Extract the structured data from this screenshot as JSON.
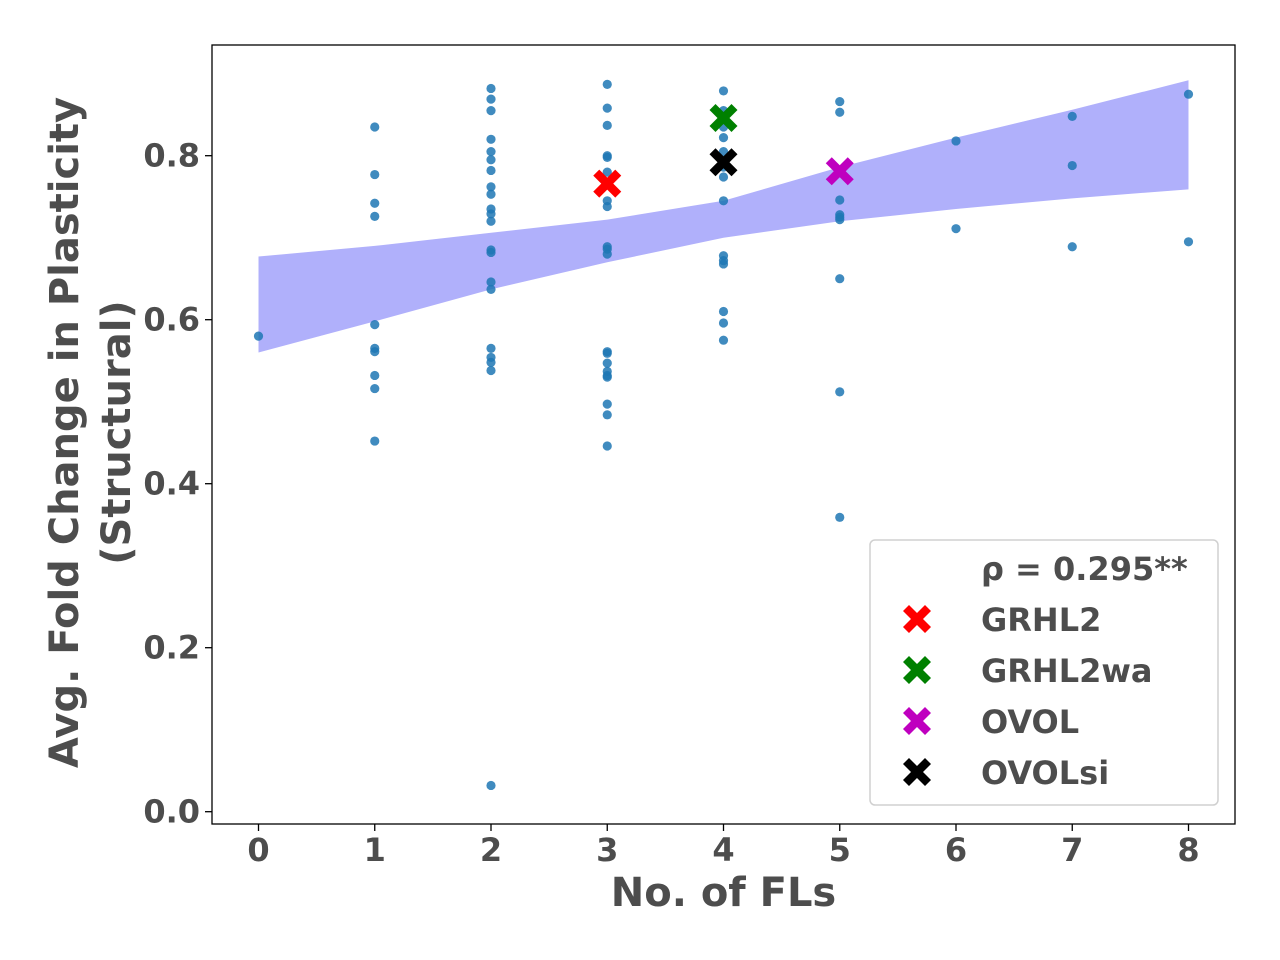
{
  "chart_data": {
    "type": "scatter",
    "xlabel": "No. of FLs",
    "ylabel_line1": "Avg. Fold Change in Plasticity",
    "ylabel_line2": "(Structural)",
    "xlim": [
      -0.4,
      8.4
    ],
    "ylim": [
      -0.015,
      0.935
    ],
    "x_ticks": [
      "0",
      "1",
      "2",
      "3",
      "4",
      "5",
      "6",
      "7",
      "8"
    ],
    "y_ticks": [
      "0.0",
      "0.2",
      "0.4",
      "0.6",
      "0.8"
    ],
    "grid": false,
    "legend_position": "lower-right",
    "colors": {
      "points": "#1f77b4",
      "band": "#b0b0fb",
      "GRHL2": "#ff0000",
      "GRHL2wa": "#008000",
      "OVOL": "#bf00bf",
      "OVOLsi": "#000000",
      "text": "#4d4d4d"
    },
    "points": [
      {
        "x": 0,
        "y": 0.58
      },
      {
        "x": 1,
        "y": 0.835
      },
      {
        "x": 1,
        "y": 0.777
      },
      {
        "x": 1,
        "y": 0.742
      },
      {
        "x": 1,
        "y": 0.726
      },
      {
        "x": 1,
        "y": 0.594
      },
      {
        "x": 1,
        "y": 0.565
      },
      {
        "x": 1,
        "y": 0.561
      },
      {
        "x": 1,
        "y": 0.532
      },
      {
        "x": 1,
        "y": 0.516
      },
      {
        "x": 1,
        "y": 0.452
      },
      {
        "x": 2,
        "y": 0.882
      },
      {
        "x": 2,
        "y": 0.869
      },
      {
        "x": 2,
        "y": 0.855
      },
      {
        "x": 2,
        "y": 0.82
      },
      {
        "x": 2,
        "y": 0.805
      },
      {
        "x": 2,
        "y": 0.795
      },
      {
        "x": 2,
        "y": 0.782
      },
      {
        "x": 2,
        "y": 0.762
      },
      {
        "x": 2,
        "y": 0.753
      },
      {
        "x": 2,
        "y": 0.735
      },
      {
        "x": 2,
        "y": 0.729
      },
      {
        "x": 2,
        "y": 0.72
      },
      {
        "x": 2,
        "y": 0.685
      },
      {
        "x": 2,
        "y": 0.682
      },
      {
        "x": 2,
        "y": 0.646
      },
      {
        "x": 2,
        "y": 0.637
      },
      {
        "x": 2,
        "y": 0.565
      },
      {
        "x": 2,
        "y": 0.554
      },
      {
        "x": 2,
        "y": 0.548
      },
      {
        "x": 2,
        "y": 0.538
      },
      {
        "x": 2,
        "y": 0.032
      },
      {
        "x": 3,
        "y": 0.887
      },
      {
        "x": 3,
        "y": 0.858
      },
      {
        "x": 3,
        "y": 0.837
      },
      {
        "x": 3,
        "y": 0.8
      },
      {
        "x": 3,
        "y": 0.798
      },
      {
        "x": 3,
        "y": 0.78
      },
      {
        "x": 3,
        "y": 0.745
      },
      {
        "x": 3,
        "y": 0.738
      },
      {
        "x": 3,
        "y": 0.689
      },
      {
        "x": 3,
        "y": 0.686
      },
      {
        "x": 3,
        "y": 0.68
      },
      {
        "x": 3,
        "y": 0.561
      },
      {
        "x": 3,
        "y": 0.559
      },
      {
        "x": 3,
        "y": 0.547
      },
      {
        "x": 3,
        "y": 0.537
      },
      {
        "x": 3,
        "y": 0.532
      },
      {
        "x": 3,
        "y": 0.53
      },
      {
        "x": 3,
        "y": 0.497
      },
      {
        "x": 3,
        "y": 0.484
      },
      {
        "x": 3,
        "y": 0.446
      },
      {
        "x": 4,
        "y": 0.879
      },
      {
        "x": 4,
        "y": 0.855
      },
      {
        "x": 4,
        "y": 0.848
      },
      {
        "x": 4,
        "y": 0.835
      },
      {
        "x": 4,
        "y": 0.822
      },
      {
        "x": 4,
        "y": 0.805
      },
      {
        "x": 4,
        "y": 0.786
      },
      {
        "x": 4,
        "y": 0.774
      },
      {
        "x": 4,
        "y": 0.745
      },
      {
        "x": 4,
        "y": 0.678
      },
      {
        "x": 4,
        "y": 0.672
      },
      {
        "x": 4,
        "y": 0.668
      },
      {
        "x": 4,
        "y": 0.61
      },
      {
        "x": 4,
        "y": 0.596
      },
      {
        "x": 4,
        "y": 0.575
      },
      {
        "x": 5,
        "y": 0.866
      },
      {
        "x": 5,
        "y": 0.853
      },
      {
        "x": 5,
        "y": 0.779
      },
      {
        "x": 5,
        "y": 0.746
      },
      {
        "x": 5,
        "y": 0.728
      },
      {
        "x": 5,
        "y": 0.725
      },
      {
        "x": 5,
        "y": 0.722
      },
      {
        "x": 5,
        "y": 0.65
      },
      {
        "x": 5,
        "y": 0.512
      },
      {
        "x": 5,
        "y": 0.359
      },
      {
        "x": 6,
        "y": 0.818
      },
      {
        "x": 6,
        "y": 0.711
      },
      {
        "x": 7,
        "y": 0.848
      },
      {
        "x": 7,
        "y": 0.788
      },
      {
        "x": 7,
        "y": 0.689
      },
      {
        "x": 8,
        "y": 0.875
      },
      {
        "x": 8,
        "y": 0.695
      }
    ],
    "confidence_band": {
      "x": [
        0,
        1,
        2,
        3,
        4,
        5,
        6,
        7,
        8
      ],
      "upper": [
        0.677,
        0.69,
        0.706,
        0.722,
        0.745,
        0.786,
        0.822,
        0.856,
        0.892
      ],
      "lower": [
        0.56,
        0.598,
        0.637,
        0.67,
        0.7,
        0.72,
        0.735,
        0.748,
        0.759
      ]
    },
    "highlights": [
      {
        "name": "GRHL2",
        "x": 3,
        "y": 0.766
      },
      {
        "name": "GRHL2wa",
        "x": 4,
        "y": 0.846
      },
      {
        "name": "OVOL",
        "x": 5,
        "y": 0.781
      },
      {
        "name": "OVOLsi",
        "x": 4,
        "y": 0.792
      }
    ],
    "legend": {
      "stat": "ρ = 0.295**",
      "entries": [
        "GRHL2",
        "GRHL2wa",
        "OVOL",
        "OVOLsi"
      ]
    }
  }
}
